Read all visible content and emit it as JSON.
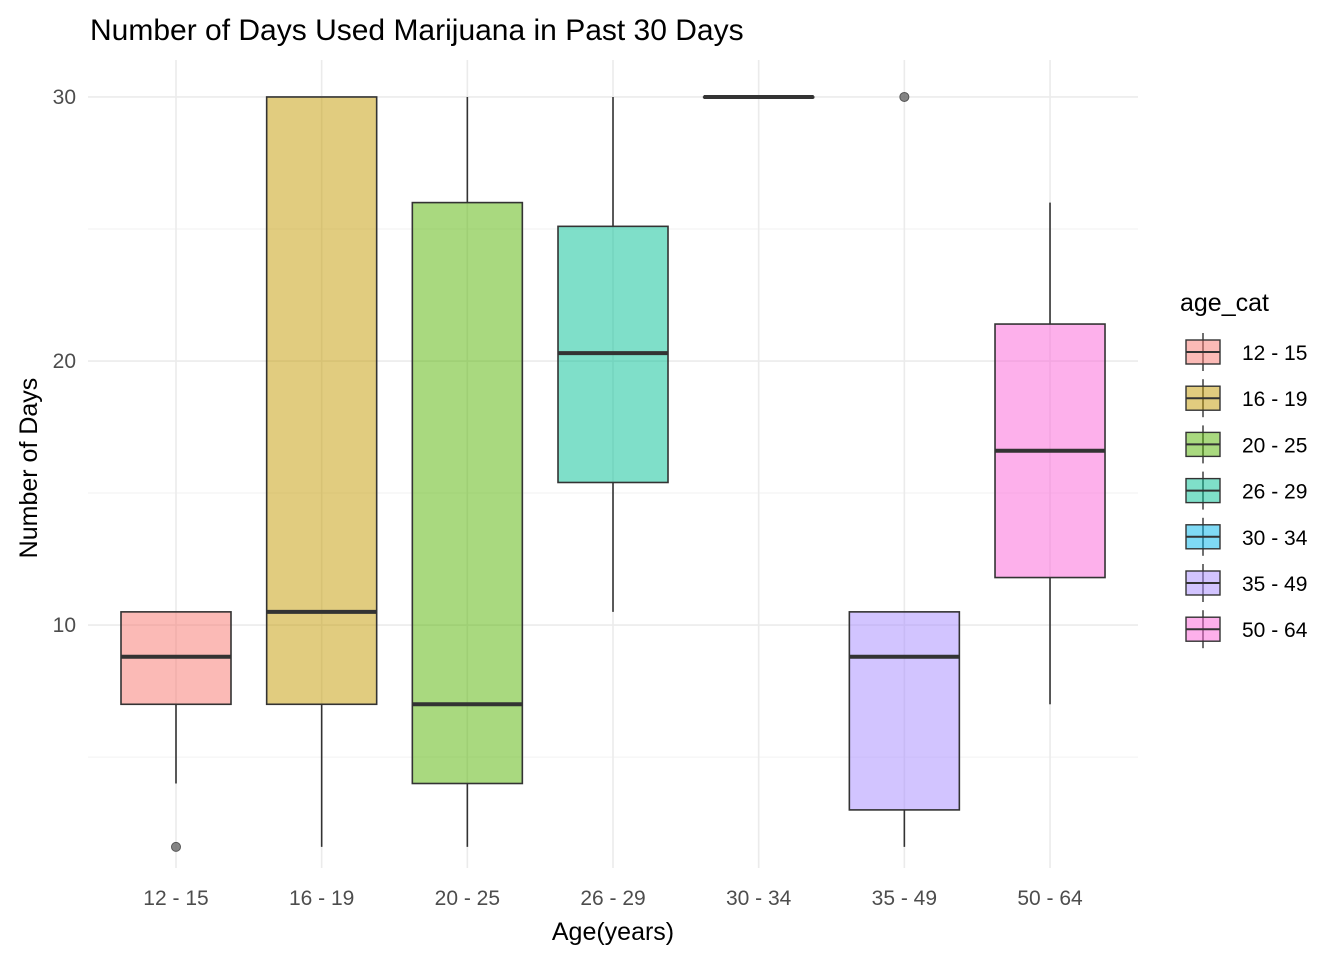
{
  "chart_data": {
    "type": "boxplot",
    "title": "Number of Days Used Marijuana in Past 30 Days",
    "xlabel": "Age(years)",
    "ylabel": "Number of Days",
    "ylim": [
      0.8,
      31.4
    ],
    "yticks": [
      10,
      20,
      30
    ],
    "grid": true,
    "legend": {
      "title": "age_cat",
      "placement": "right"
    },
    "categories": [
      "12 - 15",
      "16 - 19",
      "20 - 25",
      "26 - 29",
      "30 - 34",
      "35 - 49",
      "50 - 64"
    ],
    "colors": [
      "#F8766D",
      "#C49A00",
      "#53B400",
      "#00C094",
      "#00B6EB",
      "#A58AFF",
      "#FB61D7"
    ],
    "boxes": [
      {
        "category": "12 - 15",
        "min": 4,
        "q1": 7,
        "median": 8.8,
        "q3": 10.5,
        "max": 10.5,
        "outliers": [
          1.6
        ]
      },
      {
        "category": "16 - 19",
        "min": 1.6,
        "q1": 7,
        "median": 10.5,
        "q3": 30,
        "max": 30,
        "outliers": []
      },
      {
        "category": "20 - 25",
        "min": 1.6,
        "q1": 4,
        "median": 7,
        "q3": 26,
        "max": 30,
        "outliers": []
      },
      {
        "category": "26 - 29",
        "min": 10.5,
        "q1": 15.4,
        "median": 20.3,
        "q3": 25.1,
        "max": 30,
        "outliers": []
      },
      {
        "category": "30 - 34",
        "min": 30,
        "q1": 30,
        "median": 30,
        "q3": 30,
        "max": 30,
        "outliers": []
      },
      {
        "category": "35 - 49",
        "min": 1.6,
        "q1": 3,
        "median": 8.8,
        "q3": 10.5,
        "max": 10.5,
        "outliers": [
          30
        ]
      },
      {
        "category": "50 - 64",
        "min": 7,
        "q1": 11.8,
        "median": 16.6,
        "q3": 21.4,
        "max": 26,
        "outliers": []
      }
    ]
  }
}
